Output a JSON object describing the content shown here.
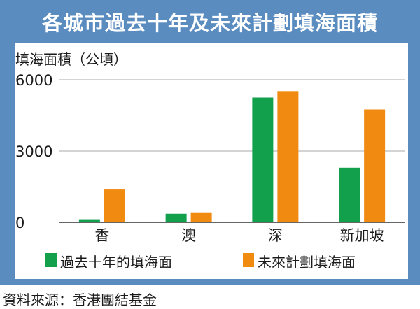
{
  "chart_data": {
    "type": "bar",
    "title": "各城市過去十年及未來計劃填海面積",
    "ylabel": "填海面積（公頃）",
    "xlabel": "",
    "categories": [
      "香",
      "澳",
      "深",
      "新加坡"
    ],
    "yticks": [
      "0",
      "3000",
      "6000"
    ],
    "ylim": [
      0,
      6000
    ],
    "grid": true,
    "legend_placement": "bottom",
    "series": [
      {
        "name": "過去十年的填海面",
        "color": "#12a04c",
        "values": [
          130,
          360,
          5250,
          2300
        ]
      },
      {
        "name": "未來計劃填海面",
        "color": "#f08a10",
        "values": [
          1380,
          420,
          5520,
          4750
        ]
      }
    ]
  },
  "source": "資料來源：香港團結基金",
  "colors": {
    "panel": "#5a8cc0",
    "grid": "#a8a8a8",
    "axis": "#333333"
  }
}
